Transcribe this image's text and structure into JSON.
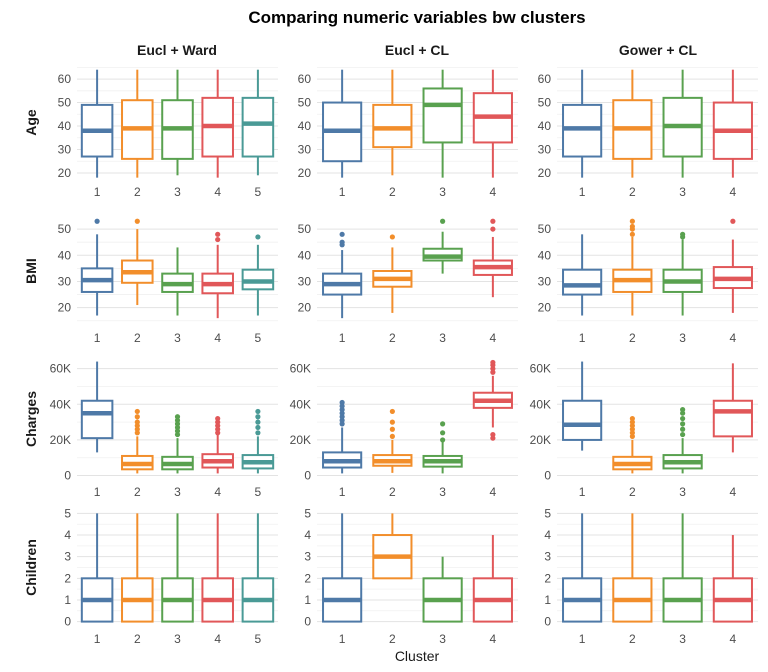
{
  "chart_data": {
    "type": "boxplot-facet-grid",
    "title": "Comparing numeric variables bw clusters",
    "xlabel": "Cluster",
    "columns": [
      "Eucl + Ward",
      "Eucl + CL",
      "Gower + CL"
    ],
    "rows": [
      {
        "name": "Age",
        "ylim": [
          17,
          66
        ],
        "ticks": [
          20,
          30,
          40,
          50,
          60
        ],
        "tick_labels": [
          "20",
          "30",
          "40",
          "50",
          "60"
        ]
      },
      {
        "name": "BMI",
        "ylim": [
          13,
          55
        ],
        "ticks": [
          20,
          30,
          40,
          50
        ],
        "tick_labels": [
          "20",
          "30",
          "40",
          "50"
        ]
      },
      {
        "name": "Charges",
        "ylim": [
          -2500,
          66000
        ],
        "ticks": [
          0,
          20000,
          40000,
          60000
        ],
        "tick_labels": [
          "0",
          "20K",
          "40K",
          "60K"
        ]
      },
      {
        "name": "Children",
        "ylim": [
          -0.25,
          5.25
        ],
        "ticks": [
          0,
          1,
          2,
          3,
          4,
          5
        ],
        "tick_labels": [
          "0",
          "1",
          "2",
          "3",
          "4",
          "5"
        ]
      }
    ],
    "colors": [
      "#4e79a7",
      "#f28e2b",
      "#59a14f",
      "#e15759",
      "#4a9a96"
    ],
    "panels": [
      [
        {
          "clusters": [
            "1",
            "2",
            "3",
            "4",
            "5"
          ],
          "boxes": [
            {
              "q1": 27,
              "median": 38,
              "q3": 49,
              "lo": 18,
              "hi": 64,
              "out": []
            },
            {
              "q1": 26,
              "median": 39,
              "q3": 51,
              "lo": 18,
              "hi": 64,
              "out": []
            },
            {
              "q1": 26,
              "median": 39,
              "q3": 51,
              "lo": 19,
              "hi": 64,
              "out": []
            },
            {
              "q1": 27,
              "median": 40,
              "q3": 52,
              "lo": 18,
              "hi": 64,
              "out": []
            },
            {
              "q1": 27,
              "median": 41,
              "q3": 52,
              "lo": 19,
              "hi": 64,
              "out": []
            }
          ]
        },
        {
          "clusters": [
            "1",
            "2",
            "3",
            "4"
          ],
          "boxes": [
            {
              "q1": 25,
              "median": 38,
              "q3": 50,
              "lo": 18,
              "hi": 64,
              "out": []
            },
            {
              "q1": 31,
              "median": 39,
              "q3": 49,
              "lo": 19,
              "hi": 64,
              "out": []
            },
            {
              "q1": 33,
              "median": 49,
              "q3": 56,
              "lo": 18,
              "hi": 64,
              "out": []
            },
            {
              "q1": 33,
              "median": 44,
              "q3": 54,
              "lo": 18,
              "hi": 64,
              "out": []
            }
          ]
        },
        {
          "clusters": [
            "1",
            "2",
            "3",
            "4"
          ],
          "boxes": [
            {
              "q1": 27,
              "median": 39,
              "q3": 49,
              "lo": 18,
              "hi": 64,
              "out": []
            },
            {
              "q1": 26,
              "median": 39,
              "q3": 51,
              "lo": 18,
              "hi": 64,
              "out": []
            },
            {
              "q1": 27,
              "median": 40,
              "q3": 52,
              "lo": 18,
              "hi": 64,
              "out": []
            },
            {
              "q1": 26,
              "median": 38,
              "q3": 50,
              "lo": 18,
              "hi": 64,
              "out": []
            }
          ]
        }
      ],
      [
        {
          "clusters": [
            "1",
            "2",
            "3",
            "4",
            "5"
          ],
          "boxes": [
            {
              "q1": 26,
              "median": 30.5,
              "q3": 35,
              "lo": 17,
              "hi": 48,
              "out": [
                53
              ]
            },
            {
              "q1": 29.5,
              "median": 33.5,
              "q3": 38,
              "lo": 21,
              "hi": 50,
              "out": [
                53
              ]
            },
            {
              "q1": 26,
              "median": 29,
              "q3": 33,
              "lo": 17,
              "hi": 43,
              "out": []
            },
            {
              "q1": 25.5,
              "median": 29,
              "q3": 33,
              "lo": 16,
              "hi": 44,
              "out": [
                46,
                48
              ]
            },
            {
              "q1": 27,
              "median": 30,
              "q3": 34.5,
              "lo": 17,
              "hi": 44,
              "out": [
                47
              ]
            }
          ]
        },
        {
          "clusters": [
            "1",
            "2",
            "3",
            "4"
          ],
          "boxes": [
            {
              "q1": 25,
              "median": 29,
              "q3": 33,
              "lo": 16,
              "hi": 42,
              "out": [
                44,
                45,
                48
              ]
            },
            {
              "q1": 28,
              "median": 31,
              "q3": 34,
              "lo": 18,
              "hi": 43,
              "out": [
                47
              ]
            },
            {
              "q1": 38,
              "median": 39.5,
              "q3": 42.5,
              "lo": 33,
              "hi": 49,
              "out": [
                53
              ]
            },
            {
              "q1": 32.5,
              "median": 35.5,
              "q3": 38,
              "lo": 24,
              "hi": 47,
              "out": [
                50,
                53
              ]
            }
          ]
        },
        {
          "clusters": [
            "1",
            "2",
            "3",
            "4"
          ],
          "boxes": [
            {
              "q1": 25,
              "median": 28.5,
              "q3": 34.5,
              "lo": 17,
              "hi": 48,
              "out": []
            },
            {
              "q1": 26,
              "median": 30.5,
              "q3": 34.5,
              "lo": 17,
              "hi": 47,
              "out": [
                48,
                50,
                51,
                53
              ]
            },
            {
              "q1": 26,
              "median": 30,
              "q3": 34.5,
              "lo": 17,
              "hi": 46,
              "out": [
                47,
                48
              ]
            },
            {
              "q1": 27.5,
              "median": 31,
              "q3": 35.5,
              "lo": 18,
              "hi": 46,
              "out": [
                53
              ]
            }
          ]
        }
      ],
      [
        {
          "clusters": [
            "1",
            "2",
            "3",
            "4",
            "5"
          ],
          "boxes": [
            {
              "q1": 21000,
              "median": 35000,
              "q3": 42000,
              "lo": 13000,
              "hi": 64000,
              "out": []
            },
            {
              "q1": 3500,
              "median": 6500,
              "q3": 11000,
              "lo": 1200,
              "hi": 22000,
              "out": [
                24000,
                26000,
                28000,
                30000,
                33000,
                36000
              ]
            },
            {
              "q1": 3500,
              "median": 6500,
              "q3": 10500,
              "lo": 1200,
              "hi": 21000,
              "out": [
                23000,
                25000,
                27000,
                29000,
                31000,
                33000
              ]
            },
            {
              "q1": 4500,
              "median": 8000,
              "q3": 12000,
              "lo": 1200,
              "hi": 23000,
              "out": [
                24000,
                26000,
                28000,
                30000,
                32000
              ]
            },
            {
              "q1": 4000,
              "median": 7500,
              "q3": 11500,
              "lo": 1200,
              "hi": 22000,
              "out": [
                24000,
                27000,
                30000,
                33000,
                36000
              ]
            }
          ]
        },
        {
          "clusters": [
            "1",
            "2",
            "3",
            "4"
          ],
          "boxes": [
            {
              "q1": 4500,
              "median": 8000,
              "q3": 13000,
              "lo": 1200,
              "hi": 27000,
              "out": [
                29000,
                31000,
                33000,
                35000,
                37000,
                39000,
                41000
              ]
            },
            {
              "q1": 5500,
              "median": 8000,
              "q3": 11500,
              "lo": 1500,
              "hi": 20000,
              "out": [
                22000,
                26000,
                30000,
                36000
              ]
            },
            {
              "q1": 5000,
              "median": 8000,
              "q3": 11000,
              "lo": 1200,
              "hi": 19000,
              "out": [
                20000,
                24000,
                29000
              ]
            },
            {
              "q1": 38000,
              "median": 42000,
              "q3": 46500,
              "lo": 27000,
              "hi": 56000,
              "out": [
                21000,
                23000,
                58000,
                60000,
                62000,
                63500
              ]
            }
          ]
        },
        {
          "clusters": [
            "1",
            "2",
            "3",
            "4"
          ],
          "boxes": [
            {
              "q1": 20000,
              "median": 28500,
              "q3": 42000,
              "lo": 14000,
              "hi": 64000,
              "out": []
            },
            {
              "q1": 3500,
              "median": 6500,
              "q3": 10500,
              "lo": 1200,
              "hi": 20000,
              "out": [
                22000,
                24000,
                26000,
                28000,
                30000,
                32000
              ]
            },
            {
              "q1": 4000,
              "median": 7500,
              "q3": 11500,
              "lo": 1200,
              "hi": 21000,
              "out": [
                23000,
                26000,
                29000,
                32000,
                35000,
                37000
              ]
            },
            {
              "q1": 22000,
              "median": 36000,
              "q3": 42000,
              "lo": 13000,
              "hi": 63000,
              "out": []
            }
          ]
        }
      ],
      [
        {
          "clusters": [
            "1",
            "2",
            "3",
            "4",
            "5"
          ],
          "boxes": [
            {
              "q1": 0,
              "median": 1,
              "q3": 2,
              "lo": 0,
              "hi": 5,
              "out": []
            },
            {
              "q1": 0,
              "median": 1,
              "q3": 2,
              "lo": 0,
              "hi": 5,
              "out": []
            },
            {
              "q1": 0,
              "median": 1,
              "q3": 2,
              "lo": 0,
              "hi": 5,
              "out": []
            },
            {
              "q1": 0,
              "median": 1,
              "q3": 2,
              "lo": 0,
              "hi": 5,
              "out": []
            },
            {
              "q1": 0,
              "median": 1,
              "q3": 2,
              "lo": 0,
              "hi": 5,
              "out": []
            }
          ]
        },
        {
          "clusters": [
            "1",
            "2",
            "3",
            "4"
          ],
          "boxes": [
            {
              "q1": 0,
              "median": 1,
              "q3": 2,
              "lo": 0,
              "hi": 5,
              "out": []
            },
            {
              "q1": 2,
              "median": 3,
              "q3": 4,
              "lo": 2,
              "hi": 5,
              "out": []
            },
            {
              "q1": 0,
              "median": 1,
              "q3": 2,
              "lo": 0,
              "hi": 3,
              "out": []
            },
            {
              "q1": 0,
              "median": 1,
              "q3": 2,
              "lo": 0,
              "hi": 4,
              "out": []
            }
          ]
        },
        {
          "clusters": [
            "1",
            "2",
            "3",
            "4"
          ],
          "boxes": [
            {
              "q1": 0,
              "median": 1,
              "q3": 2,
              "lo": 0,
              "hi": 5,
              "out": []
            },
            {
              "q1": 0,
              "median": 1,
              "q3": 2,
              "lo": 0,
              "hi": 5,
              "out": []
            },
            {
              "q1": 0,
              "median": 1,
              "q3": 2,
              "lo": 0,
              "hi": 5,
              "out": []
            },
            {
              "q1": 0,
              "median": 1,
              "q3": 2,
              "lo": 0,
              "hi": 4,
              "out": []
            }
          ]
        }
      ]
    ]
  }
}
